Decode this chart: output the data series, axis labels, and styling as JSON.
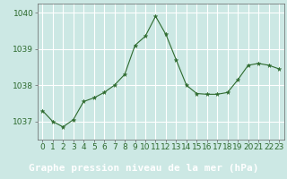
{
  "x": [
    0,
    1,
    2,
    3,
    4,
    5,
    6,
    7,
    8,
    9,
    10,
    11,
    12,
    13,
    14,
    15,
    16,
    17,
    18,
    19,
    20,
    21,
    22,
    23
  ],
  "y": [
    1037.3,
    1037.0,
    1036.85,
    1037.05,
    1037.55,
    1037.65,
    1037.8,
    1038.0,
    1038.3,
    1039.1,
    1039.35,
    1039.9,
    1039.4,
    1038.7,
    1038.0,
    1037.77,
    1037.75,
    1037.75,
    1037.8,
    1038.15,
    1038.55,
    1038.6,
    1038.55,
    1038.45
  ],
  "line_color": "#2d6a2d",
  "marker": "*",
  "marker_size": 3.5,
  "bg_color": "#cce8e4",
  "grid_color": "#ffffff",
  "axis_line_color": "#888888",
  "xlabel": "Graphe pression niveau de la mer (hPa)",
  "xlabel_color": "#ffffff",
  "xlabel_bg": "#3a7a3a",
  "xlabel_fontsize": 8,
  "ylabel_ticks": [
    1037,
    1038,
    1039,
    1040
  ],
  "ylim": [
    1036.5,
    1040.25
  ],
  "xlim": [
    -0.5,
    23.5
  ],
  "tick_fontsize": 6.5,
  "xtick_color": "#2d6a2d",
  "ytick_color": "#2d6a2d"
}
